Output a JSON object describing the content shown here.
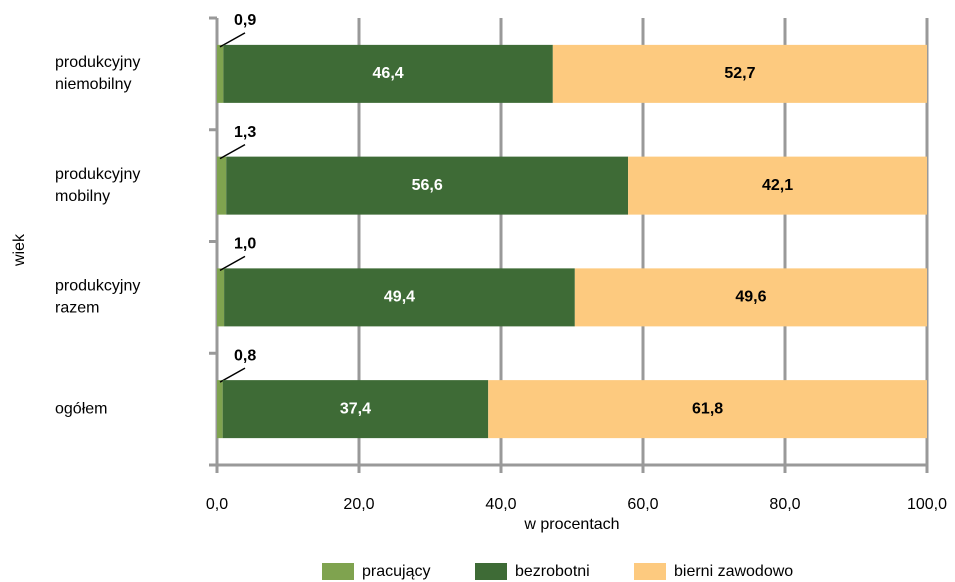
{
  "chart_data": {
    "type": "stacked-hbar",
    "categories": [
      [
        "produkcyjny",
        "niemobilny"
      ],
      [
        "produkcyjny",
        "mobilny"
      ],
      [
        "produkcyjny",
        "razem"
      ],
      [
        "ogółem"
      ]
    ],
    "series": [
      {
        "name": "pracujący",
        "color": "#7fa34f",
        "values": [
          0.9,
          1.3,
          1.0,
          0.8
        ],
        "value_labels": [
          "0,9",
          "1,3",
          "1,0",
          "0,8"
        ]
      },
      {
        "name": "bezrobotni",
        "color": "#3e6b36",
        "values": [
          46.4,
          56.6,
          49.4,
          37.4
        ],
        "value_labels": [
          "46,4",
          "56,6",
          "49,4",
          "37,4"
        ]
      },
      {
        "name": "bierni zawodowo",
        "color": "#fdca7f",
        "values": [
          52.7,
          42.1,
          49.6,
          61.8
        ],
        "value_labels": [
          "52,7",
          "42,1",
          "49,6",
          "61,8"
        ]
      }
    ],
    "xlabel": "w procentach",
    "ylabel": "wiek",
    "xlim": [
      0,
      100
    ],
    "xticks": [
      {
        "value": 0,
        "label": "0,0"
      },
      {
        "value": 20,
        "label": "20,0"
      },
      {
        "value": 40,
        "label": "40,0"
      },
      {
        "value": 60,
        "label": "60,0"
      },
      {
        "value": 80,
        "label": "80,0"
      },
      {
        "value": 100,
        "label": "100,0"
      }
    ],
    "grid": true,
    "legend": "bottom"
  }
}
